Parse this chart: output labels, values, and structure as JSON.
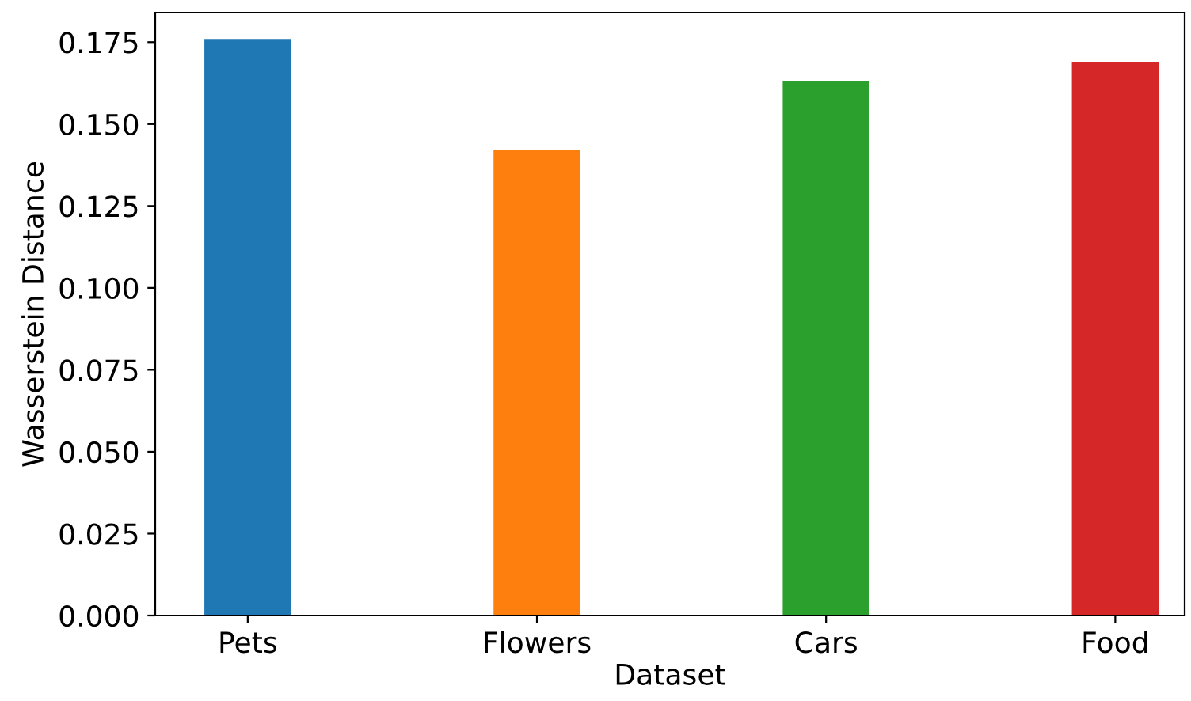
{
  "chart_data": {
    "type": "bar",
    "xlabel": "Dataset",
    "ylabel": "Wasserstein Distance",
    "categories": [
      "Pets",
      "Flowers",
      "Cars",
      "Food"
    ],
    "values": [
      0.176,
      0.142,
      0.163,
      0.169
    ],
    "colors": [
      "#1f77b4",
      "#ff7f0e",
      "#2ca02c",
      "#d62728"
    ],
    "ylim": [
      0,
      0.184
    ],
    "yticks": [
      {
        "value": 0,
        "label": "0.000"
      },
      {
        "value": 0.025,
        "label": "0.025"
      },
      {
        "value": 0.05,
        "label": "0.050"
      },
      {
        "value": 0.075,
        "label": "0.075"
      },
      {
        "value": 0.1,
        "label": "0.100"
      },
      {
        "value": 0.125,
        "label": "0.125"
      },
      {
        "value": 0.15,
        "label": "0.150"
      },
      {
        "value": 0.175,
        "label": "0.175"
      }
    ]
  }
}
